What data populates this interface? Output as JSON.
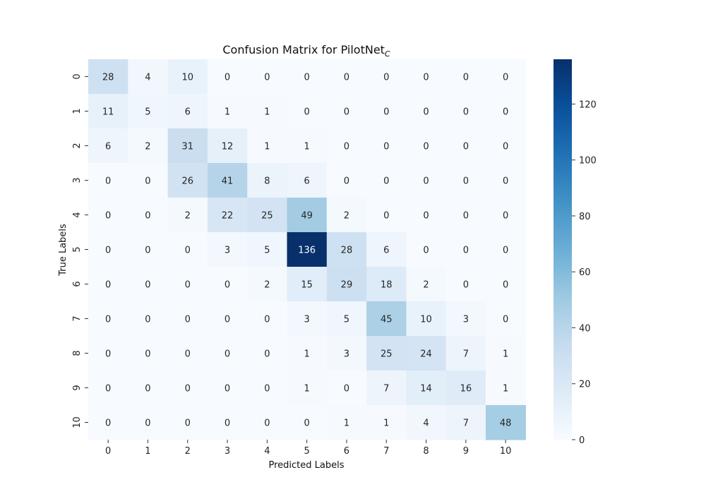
{
  "chart_data": {
    "type": "heatmap",
    "title": "Confusion Matrix for PilotNet",
    "title_subscript": "C",
    "xlabel": "Predicted Labels",
    "ylabel": "True Labels",
    "x_categories": [
      "0",
      "1",
      "2",
      "3",
      "4",
      "5",
      "6",
      "7",
      "8",
      "9",
      "10"
    ],
    "y_categories": [
      "0",
      "1",
      "2",
      "3",
      "4",
      "5",
      "6",
      "7",
      "8",
      "9",
      "10"
    ],
    "values": [
      [
        28,
        4,
        10,
        0,
        0,
        0,
        0,
        0,
        0,
        0,
        0
      ],
      [
        11,
        5,
        6,
        1,
        1,
        0,
        0,
        0,
        0,
        0,
        0
      ],
      [
        6,
        2,
        31,
        12,
        1,
        1,
        0,
        0,
        0,
        0,
        0
      ],
      [
        0,
        0,
        26,
        41,
        8,
        6,
        0,
        0,
        0,
        0,
        0
      ],
      [
        0,
        0,
        2,
        22,
        25,
        49,
        2,
        0,
        0,
        0,
        0
      ],
      [
        0,
        0,
        0,
        3,
        5,
        136,
        28,
        6,
        0,
        0,
        0
      ],
      [
        0,
        0,
        0,
        0,
        2,
        15,
        29,
        18,
        2,
        0,
        0
      ],
      [
        0,
        0,
        0,
        0,
        0,
        3,
        5,
        45,
        10,
        3,
        0
      ],
      [
        0,
        0,
        0,
        0,
        0,
        1,
        3,
        25,
        24,
        7,
        1
      ],
      [
        0,
        0,
        0,
        0,
        0,
        1,
        0,
        7,
        14,
        16,
        1
      ],
      [
        0,
        0,
        0,
        0,
        0,
        0,
        1,
        1,
        4,
        7,
        48
      ]
    ],
    "colorbar": {
      "colormap": "Blues",
      "vmin": 0,
      "vmax": 136,
      "ticks": [
        0,
        20,
        40,
        60,
        80,
        100,
        120
      ]
    }
  }
}
